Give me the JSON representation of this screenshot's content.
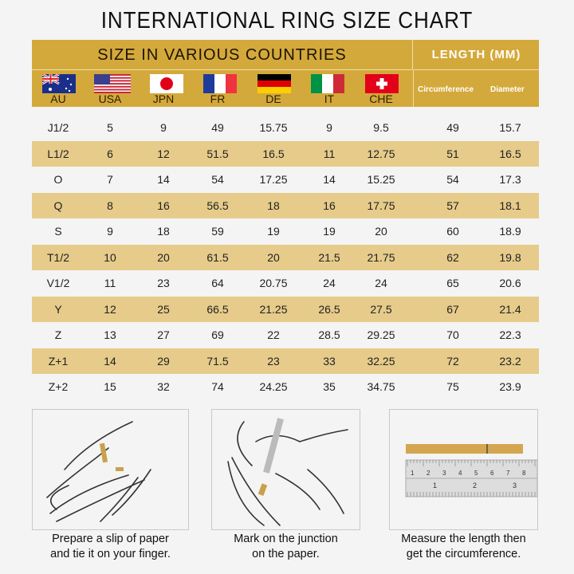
{
  "title": "INTERNATIONAL RING SIZE CHART",
  "header": {
    "countries_label": "SIZE IN VARIOUS COUNTRIES",
    "length_label": "LENGTH (MM)",
    "countries": [
      {
        "code": "AU",
        "flag": "australia-flag"
      },
      {
        "code": "USA",
        "flag": "usa-flag"
      },
      {
        "code": "JPN",
        "flag": "japan-flag"
      },
      {
        "code": "FR",
        "flag": "france-flag"
      },
      {
        "code": "DE",
        "flag": "germany-flag"
      },
      {
        "code": "IT",
        "flag": "italy-flag"
      },
      {
        "code": "CHE",
        "flag": "switzerland-flag"
      }
    ],
    "length_columns": [
      "Circumference",
      "Diameter"
    ]
  },
  "rows": [
    [
      "J1/2",
      "5",
      "9",
      "49",
      "15.75",
      "9",
      "9.5",
      "49",
      "15.7"
    ],
    [
      "L1/2",
      "6",
      "12",
      "51.5",
      "16.5",
      "11",
      "12.75",
      "51",
      "16.5"
    ],
    [
      "O",
      "7",
      "14",
      "54",
      "17.25",
      "14",
      "15.25",
      "54",
      "17.3"
    ],
    [
      "Q",
      "8",
      "16",
      "56.5",
      "18",
      "16",
      "17.75",
      "57",
      "18.1"
    ],
    [
      "S",
      "9",
      "18",
      "59",
      "19",
      "19",
      "20",
      "60",
      "18.9"
    ],
    [
      "T1/2",
      "10",
      "20",
      "61.5",
      "20",
      "21.5",
      "21.75",
      "62",
      "19.8"
    ],
    [
      "V1/2",
      "11",
      "23",
      "64",
      "20.75",
      "24",
      "24",
      "65",
      "20.6"
    ],
    [
      "Y",
      "12",
      "25",
      "66.5",
      "21.25",
      "26.5",
      "27.5",
      "67",
      "21.4"
    ],
    [
      "Z",
      "13",
      "27",
      "69",
      "22",
      "28.5",
      "29.25",
      "70",
      "22.3"
    ],
    [
      "Z+1",
      "14",
      "29",
      "71.5",
      "23",
      "33",
      "32.25",
      "72",
      "23.2"
    ],
    [
      "Z+2",
      "15",
      "32",
      "74",
      "24.25",
      "35",
      "34.75",
      "75",
      "23.9"
    ]
  ],
  "steps": [
    {
      "line1": "Prepare a slip of paper",
      "line2": "and tie it on your finger."
    },
    {
      "line1": "Mark on the junction",
      "line2": "on the paper."
    },
    {
      "line1": "Measure the length then",
      "line2": "get the circumference."
    }
  ],
  "ruler": {
    "top_ticks": [
      "1",
      "2",
      "3",
      "4",
      "5",
      "6",
      "7",
      "8"
    ],
    "bottom_ticks": [
      "1",
      "2",
      "3"
    ]
  },
  "colors": {
    "header": "#d4a93b",
    "alt_row": "#e6cb8a",
    "background": "#f4f4f4"
  }
}
